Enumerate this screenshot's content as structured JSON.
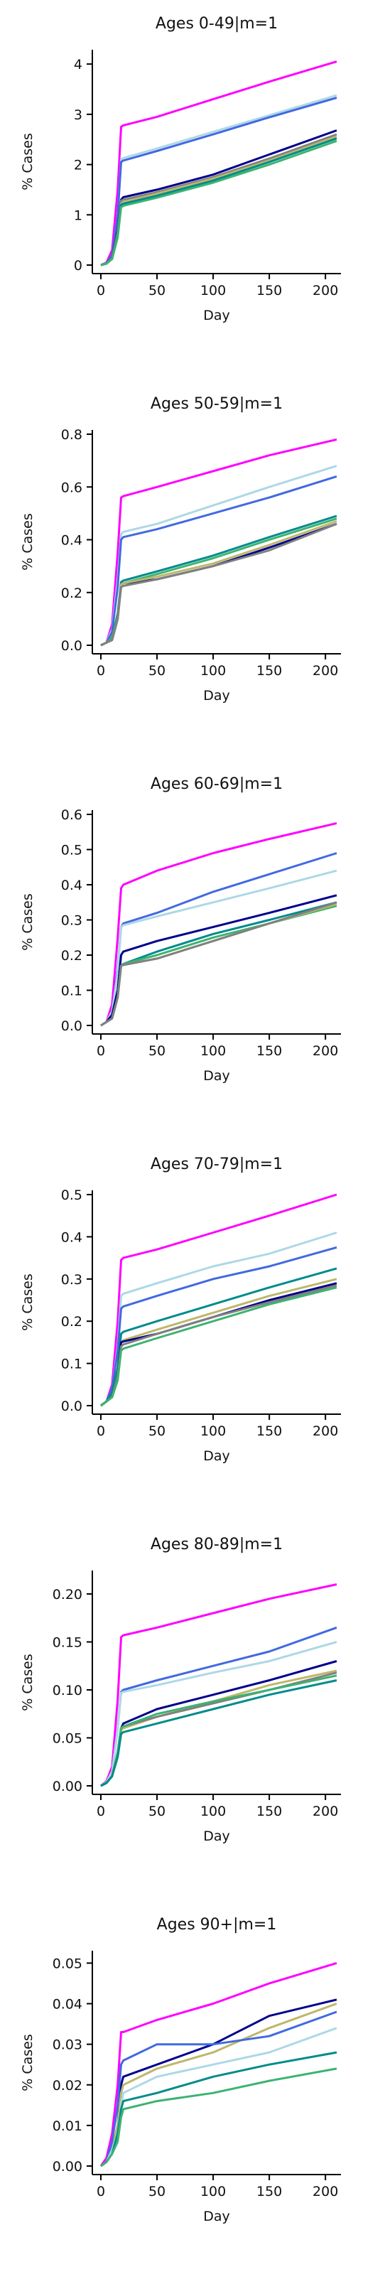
{
  "chart_data": [
    {
      "type": "line",
      "title": "Ages 0-49|m=1",
      "xlabel": "Day",
      "ylabel": "% Cases",
      "xlim": [
        0,
        210
      ],
      "ylim": [
        0,
        4.2
      ],
      "xticks": [
        "0",
        "50",
        "100",
        "150",
        "200"
      ],
      "yticks": [
        "0",
        "1",
        "2",
        "3",
        "4"
      ],
      "x": [
        0,
        5,
        10,
        15,
        18,
        20,
        50,
        100,
        150,
        210
      ],
      "series": [
        {
          "color": "#ff00ff",
          "values": [
            0.0,
            0.05,
            0.3,
            1.5,
            2.75,
            2.78,
            2.95,
            3.3,
            3.65,
            4.05
          ]
        },
        {
          "color": "#add8e6",
          "values": [
            0.0,
            0.04,
            0.2,
            1.0,
            2.1,
            2.13,
            2.32,
            2.65,
            2.98,
            3.38
          ]
        },
        {
          "color": "#4169e1",
          "values": [
            0.0,
            0.04,
            0.2,
            1.0,
            2.05,
            2.08,
            2.27,
            2.6,
            2.94,
            3.33
          ]
        },
        {
          "color": "#00008b",
          "values": [
            0.0,
            0.03,
            0.15,
            0.7,
            1.3,
            1.35,
            1.5,
            1.8,
            2.2,
            2.68
          ]
        },
        {
          "color": "#808080",
          "values": [
            0.0,
            0.03,
            0.14,
            0.65,
            1.28,
            1.3,
            1.45,
            1.75,
            2.12,
            2.6
          ]
        },
        {
          "color": "#bdb76b",
          "values": [
            0.0,
            0.03,
            0.13,
            0.6,
            1.22,
            1.25,
            1.42,
            1.72,
            2.08,
            2.56
          ]
        },
        {
          "color": "#008b8b",
          "values": [
            0.0,
            0.03,
            0.12,
            0.58,
            1.2,
            1.22,
            1.38,
            1.68,
            2.05,
            2.52
          ]
        },
        {
          "color": "#3cb371",
          "values": [
            0.0,
            0.03,
            0.12,
            0.55,
            1.15,
            1.18,
            1.34,
            1.64,
            2.0,
            2.47
          ]
        }
      ]
    },
    {
      "type": "line",
      "title": "Ages 50-59|m=1",
      "xlabel": "Day",
      "ylabel": "% Cases",
      "xlim": [
        0,
        210
      ],
      "ylim": [
        0,
        0.8
      ],
      "xticks": [
        "0",
        "50",
        "100",
        "150",
        "200"
      ],
      "yticks": [
        "0.0",
        "0.2",
        "0.4",
        "0.6",
        "0.8"
      ],
      "x": [
        0,
        5,
        10,
        15,
        18,
        20,
        50,
        100,
        150,
        210
      ],
      "series": [
        {
          "color": "#ff00ff",
          "values": [
            0.0,
            0.01,
            0.08,
            0.35,
            0.56,
            0.565,
            0.6,
            0.66,
            0.72,
            0.78
          ]
        },
        {
          "color": "#add8e6",
          "values": [
            0.0,
            0.01,
            0.06,
            0.25,
            0.42,
            0.43,
            0.46,
            0.53,
            0.6,
            0.68
          ]
        },
        {
          "color": "#4169e1",
          "values": [
            0.0,
            0.01,
            0.05,
            0.22,
            0.4,
            0.41,
            0.44,
            0.5,
            0.56,
            0.64
          ]
        },
        {
          "color": "#008b8b",
          "values": [
            0.0,
            0.01,
            0.03,
            0.12,
            0.24,
            0.245,
            0.28,
            0.34,
            0.41,
            0.49
          ]
        },
        {
          "color": "#3cb371",
          "values": [
            0.0,
            0.01,
            0.03,
            0.11,
            0.23,
            0.235,
            0.27,
            0.33,
            0.4,
            0.48
          ]
        },
        {
          "color": "#00008b",
          "values": [
            0.0,
            0.01,
            0.02,
            0.1,
            0.23,
            0.235,
            0.25,
            0.3,
            0.37,
            0.46
          ]
        },
        {
          "color": "#bdb76b",
          "values": [
            0.0,
            0.01,
            0.02,
            0.1,
            0.23,
            0.235,
            0.26,
            0.31,
            0.38,
            0.47
          ]
        },
        {
          "color": "#808080",
          "values": [
            0.0,
            0.01,
            0.02,
            0.1,
            0.22,
            0.225,
            0.25,
            0.3,
            0.36,
            0.46
          ]
        }
      ]
    },
    {
      "type": "line",
      "title": "Ages 60-69|m=1",
      "xlabel": "Day",
      "ylabel": "% Cases",
      "xlim": [
        0,
        210
      ],
      "ylim": [
        0,
        0.6
      ],
      "xticks": [
        "0",
        "50",
        "100",
        "150",
        "200"
      ],
      "yticks": [
        "0.0",
        "0.1",
        "0.2",
        "0.3",
        "0.4",
        "0.5",
        "0.6"
      ],
      "x": [
        0,
        5,
        10,
        15,
        18,
        20,
        50,
        100,
        150,
        210
      ],
      "series": [
        {
          "color": "#ff00ff",
          "values": [
            0.0,
            0.01,
            0.06,
            0.25,
            0.39,
            0.4,
            0.44,
            0.49,
            0.53,
            0.575
          ]
        },
        {
          "color": "#4169e1",
          "values": [
            0.0,
            0.01,
            0.04,
            0.16,
            0.28,
            0.29,
            0.32,
            0.38,
            0.43,
            0.49
          ]
        },
        {
          "color": "#add8e6",
          "values": [
            0.0,
            0.01,
            0.04,
            0.15,
            0.28,
            0.285,
            0.31,
            0.35,
            0.39,
            0.44
          ]
        },
        {
          "color": "#00008b",
          "values": [
            0.0,
            0.01,
            0.03,
            0.1,
            0.2,
            0.21,
            0.24,
            0.28,
            0.32,
            0.37
          ]
        },
        {
          "color": "#008b8b",
          "values": [
            0.0,
            0.01,
            0.02,
            0.08,
            0.17,
            0.175,
            0.21,
            0.26,
            0.3,
            0.35
          ]
        },
        {
          "color": "#3cb371",
          "values": [
            0.0,
            0.01,
            0.02,
            0.08,
            0.17,
            0.175,
            0.2,
            0.25,
            0.29,
            0.34
          ]
        },
        {
          "color": "#bdb76b",
          "values": [
            0.0,
            0.01,
            0.02,
            0.08,
            0.17,
            0.172,
            0.19,
            0.24,
            0.29,
            0.345
          ]
        },
        {
          "color": "#808080",
          "values": [
            0.0,
            0.01,
            0.02,
            0.08,
            0.17,
            0.172,
            0.19,
            0.24,
            0.29,
            0.35
          ]
        }
      ]
    },
    {
      "type": "line",
      "title": "Ages 70-79|m=1",
      "xlabel": "Day",
      "ylabel": "% Cases",
      "xlim": [
        0,
        210
      ],
      "ylim": [
        0,
        0.5
      ],
      "xticks": [
        "0",
        "50",
        "100",
        "150",
        "200"
      ],
      "yticks": [
        "0.0",
        "0.1",
        "0.2",
        "0.3",
        "0.4",
        "0.5"
      ],
      "x": [
        0,
        5,
        10,
        15,
        18,
        20,
        50,
        100,
        150,
        210
      ],
      "series": [
        {
          "color": "#ff00ff",
          "values": [
            0.0,
            0.01,
            0.05,
            0.2,
            0.345,
            0.35,
            0.37,
            0.41,
            0.45,
            0.5
          ]
        },
        {
          "color": "#add8e6",
          "values": [
            0.0,
            0.01,
            0.04,
            0.14,
            0.26,
            0.265,
            0.29,
            0.33,
            0.36,
            0.41
          ]
        },
        {
          "color": "#4169e1",
          "values": [
            0.0,
            0.01,
            0.04,
            0.13,
            0.23,
            0.235,
            0.26,
            0.3,
            0.33,
            0.375
          ]
        },
        {
          "color": "#008b8b",
          "values": [
            0.0,
            0.01,
            0.03,
            0.09,
            0.17,
            0.175,
            0.2,
            0.24,
            0.28,
            0.325
          ]
        },
        {
          "color": "#bdb76b",
          "values": [
            0.0,
            0.01,
            0.02,
            0.07,
            0.15,
            0.155,
            0.18,
            0.22,
            0.26,
            0.3
          ]
        },
        {
          "color": "#00008b",
          "values": [
            0.0,
            0.01,
            0.02,
            0.07,
            0.15,
            0.152,
            0.17,
            0.21,
            0.25,
            0.29
          ]
        },
        {
          "color": "#808080",
          "values": [
            0.0,
            0.01,
            0.02,
            0.07,
            0.14,
            0.145,
            0.17,
            0.21,
            0.245,
            0.285
          ]
        },
        {
          "color": "#3cb371",
          "values": [
            0.0,
            0.01,
            0.02,
            0.06,
            0.13,
            0.135,
            0.16,
            0.2,
            0.24,
            0.28
          ]
        }
      ]
    },
    {
      "type": "line",
      "title": "Ages 80-89|m=1",
      "xlabel": "Day",
      "ylabel": "% Cases",
      "xlim": [
        0,
        210
      ],
      "ylim": [
        0,
        0.22
      ],
      "xticks": [
        "0",
        "50",
        "100",
        "150",
        "200"
      ],
      "yticks": [
        "0.00",
        "0.05",
        "0.10",
        "0.15",
        "0.20"
      ],
      "x": [
        0,
        5,
        10,
        15,
        18,
        20,
        50,
        100,
        150,
        210
      ],
      "series": [
        {
          "color": "#ff00ff",
          "values": [
            0.0,
            0.005,
            0.02,
            0.09,
            0.155,
            0.157,
            0.165,
            0.18,
            0.195,
            0.21
          ]
        },
        {
          "color": "#4169e1",
          "values": [
            0.0,
            0.004,
            0.015,
            0.06,
            0.098,
            0.1,
            0.11,
            0.125,
            0.14,
            0.165
          ]
        },
        {
          "color": "#add8e6",
          "values": [
            0.0,
            0.004,
            0.015,
            0.06,
            0.097,
            0.098,
            0.105,
            0.118,
            0.13,
            0.15
          ]
        },
        {
          "color": "#00008b",
          "values": [
            0.0,
            0.003,
            0.01,
            0.035,
            0.06,
            0.065,
            0.08,
            0.095,
            0.11,
            0.13
          ]
        },
        {
          "color": "#bdb76b",
          "values": [
            0.0,
            0.003,
            0.01,
            0.035,
            0.058,
            0.06,
            0.072,
            0.088,
            0.105,
            0.12
          ]
        },
        {
          "color": "#808080",
          "values": [
            0.0,
            0.003,
            0.01,
            0.035,
            0.06,
            0.062,
            0.072,
            0.086,
            0.1,
            0.118
          ]
        },
        {
          "color": "#3cb371",
          "values": [
            0.0,
            0.003,
            0.01,
            0.035,
            0.06,
            0.062,
            0.075,
            0.088,
            0.1,
            0.115
          ]
        },
        {
          "color": "#008b8b",
          "values": [
            0.0,
            0.003,
            0.01,
            0.03,
            0.054,
            0.056,
            0.065,
            0.08,
            0.095,
            0.11
          ]
        }
      ]
    },
    {
      "type": "line",
      "title": "Ages 90+|m=1",
      "xlabel": "Day",
      "ylabel": "% Cases",
      "xlim": [
        0,
        210
      ],
      "ylim": [
        0,
        0.052
      ],
      "xticks": [
        "0",
        "50",
        "100",
        "150",
        "200"
      ],
      "yticks": [
        "0.00",
        "0.01",
        "0.02",
        "0.03",
        "0.04",
        "0.05"
      ],
      "x": [
        0,
        5,
        10,
        15,
        18,
        20,
        50,
        100,
        150,
        210
      ],
      "series": [
        {
          "color": "#ff00ff",
          "values": [
            0.0,
            0.002,
            0.008,
            0.02,
            0.033,
            0.033,
            0.036,
            0.04,
            0.045,
            0.05
          ]
        },
        {
          "color": "#00008b",
          "values": [
            0.0,
            0.001,
            0.004,
            0.01,
            0.02,
            0.022,
            0.025,
            0.03,
            0.037,
            0.041
          ]
        },
        {
          "color": "#bdb76b",
          "values": [
            0.0,
            0.001,
            0.004,
            0.01,
            0.018,
            0.02,
            0.024,
            0.028,
            0.034,
            0.04
          ]
        },
        {
          "color": "#4169e1",
          "values": [
            0.0,
            0.001,
            0.006,
            0.015,
            0.025,
            0.026,
            0.03,
            0.03,
            0.032,
            0.038
          ]
        },
        {
          "color": "#add8e6",
          "values": [
            0.0,
            0.001,
            0.004,
            0.008,
            0.015,
            0.018,
            0.022,
            0.025,
            0.028,
            0.034
          ]
        },
        {
          "color": "#008b8b",
          "values": [
            0.0,
            0.001,
            0.003,
            0.008,
            0.014,
            0.016,
            0.018,
            0.022,
            0.025,
            0.028
          ]
        },
        {
          "color": "#3cb371",
          "values": [
            0.0,
            0.001,
            0.003,
            0.006,
            0.012,
            0.014,
            0.016,
            0.018,
            0.021,
            0.024
          ]
        }
      ]
    }
  ]
}
